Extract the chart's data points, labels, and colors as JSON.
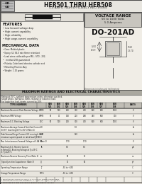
{
  "title_part": "HER501 THRU HER508",
  "title_sub": "5.0 AMPS. HIGH EFFICIENCY RECTIFIERS",
  "bg_color": "#d4d0c8",
  "white": "#ffffff",
  "black": "#000000",
  "voltage_range_title": "VOLTAGE RANGE",
  "voltage_range_line1": "50 to 1000 Volts",
  "voltage_range_line2": "5.0 Amperes",
  "package_name": "DO-201AD",
  "features_title": "FEATURES",
  "features": [
    "Low forward voltage drop",
    "High current capability",
    "High reliability",
    "High surge-current capability"
  ],
  "mech_title": "MECHANICAL DATA",
  "mech": [
    "Case: Molded plastic",
    "Epoxy: UL 94-0 rate flame retardant",
    "Lead wires solderable per MIL - STD - 202,",
    "  method 208 guaranteed",
    "Polarity: Color band denotes cathode end",
    "Mounting Position: Any",
    "Weight: 1.10 grams"
  ],
  "table_title": "MAXIMUM RATINGS AND ELECTRICAL CHARACTERISTICS",
  "table_note1": "Rating at 25°C, ambient temperature unless otherwise specified.",
  "table_note2": "Single phase, half wave, 60Hz, resistive or inductive load.",
  "table_note3": "For capacitive load, derate current by 20%.",
  "rows": [
    {
      "label": "Maximum Recurrent Peak Reverse Voltage",
      "sym": "VRRM",
      "vals": [
        "50",
        "100",
        "200",
        "300",
        "400",
        "600",
        "800",
        "1000",
        "V"
      ]
    },
    {
      "label": "Maximum RMS Voltage",
      "sym": "VRMS",
      "vals": [
        "35",
        "70",
        "140",
        "210",
        "280",
        "420",
        "560",
        "700",
        "V"
      ]
    },
    {
      "label": "Maximum D.C. Blocking Voltage",
      "sym": "VDC",
      "vals": [
        "50",
        "100",
        "200",
        "300",
        "400",
        "600",
        "800",
        "1000",
        "V"
      ]
    },
    {
      "label": "Maximum Average Forward Rectified Current\n(0.375\" lead length)(Tc=55°C)(Note 1)",
      "sym": "IO",
      "vals": [
        "",
        "",
        "",
        "5.0",
        "",
        "",
        "",
        "",
        "A"
      ]
    },
    {
      "label": "Peak Forward Surge Current, 8.3 ms single half\nsinewave superimposed on rated load (JEDEC)",
      "sym": "IFSM",
      "vals": [
        "",
        "",
        "",
        "150",
        "",
        "",
        "",
        "",
        "A"
      ]
    },
    {
      "label": "Max Instantaneous Forward Voltage at 5.0A (Note 1)",
      "sym": "VF",
      "vals": [
        "",
        "",
        "1.70",
        "",
        "1.70",
        "",
        "",
        "",
        "V"
      ]
    },
    {
      "label": "Maximum D.C. Reverse Current\nat Rated DC Blocking Voltage at Tj=25°C\nat Tj=125°C",
      "sym": "IR",
      "vals": [
        "",
        "",
        "5.0",
        "",
        "5.0",
        "",
        "",
        "",
        "μA"
      ]
    },
    {
      "label": "Maximum Reverse Recovery Time (Note 2)",
      "sym": "trr",
      "vals": [
        "",
        "",
        "50",
        "",
        "75",
        "",
        "",
        "",
        "ns"
      ]
    },
    {
      "label": "Typical Junction Capacitance (Note 3)",
      "sym": "CJ",
      "vals": [
        "",
        "",
        "75",
        "",
        "50",
        "",
        "",
        "",
        "pF"
      ]
    },
    {
      "label": "Operating Temperature Range",
      "sym": "TJ",
      "vals": [
        "",
        "",
        "-55 to +150",
        "",
        "",
        "",
        "",
        "",
        "°C"
      ]
    },
    {
      "label": "Storage Temperature Range",
      "sym": "TSTG",
      "vals": [
        "",
        "",
        "-55 to +150",
        "",
        "",
        "",
        "",
        "",
        "°C"
      ]
    }
  ],
  "footer_note1": "1. Mounted on P.C.B of 64 (100) 1.1\" x 1.1\"(35 x 35mm) copper pads.",
  "footer_note2": "2. Reverse Recovery Test Conditions: IF = 0.5A, IR = 1.0A, Irr = 0.25A.",
  "footer_note3": "3. Measured at 1 MHz and applied reverse voltage of 4.0V D.C."
}
